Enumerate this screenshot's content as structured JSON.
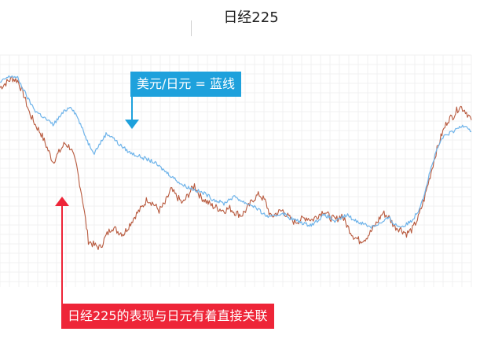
{
  "chart_data": {
    "type": "line",
    "title": "日经225",
    "xlabel": "",
    "ylabel": "",
    "grid": true,
    "series": [
      {
        "name": "日经225",
        "color": "#b85a3e",
        "values": [
          86,
          88,
          90,
          89,
          83,
          75,
          70,
          66,
          60,
          54,
          58,
          62,
          60,
          52,
          38,
          20,
          18,
          17,
          22,
          26,
          24,
          23,
          27,
          31,
          34,
          38,
          36,
          33,
          36,
          42,
          39,
          36,
          40,
          44,
          39,
          37,
          35,
          34,
          33,
          34,
          32,
          31,
          34,
          38,
          40,
          37,
          30,
          32,
          33,
          30,
          28,
          29,
          30,
          29,
          31,
          33,
          30,
          29,
          31,
          26,
          22,
          20,
          21,
          24,
          28,
          32,
          30,
          26,
          25,
          23,
          25,
          30,
          38,
          48,
          58,
          66,
          72,
          74,
          78,
          76,
          72
        ]
      },
      {
        "name": "美元/日元",
        "color": "#6fb4ea",
        "values": [
          88,
          90,
          91,
          90,
          85,
          80,
          76,
          74,
          72,
          70,
          73,
          76,
          78,
          74,
          68,
          62,
          58,
          62,
          66,
          65,
          62,
          60,
          58,
          57,
          56,
          55,
          54,
          52,
          50,
          48,
          46,
          44,
          43,
          42,
          41,
          40,
          38,
          37,
          36,
          38,
          39,
          37,
          36,
          35,
          33,
          31,
          30,
          31,
          32,
          30,
          29,
          28,
          27,
          27,
          29,
          31,
          30,
          28,
          30,
          31,
          29,
          28,
          27,
          26,
          27,
          28,
          30,
          27,
          26,
          27,
          29,
          33,
          40,
          50,
          58,
          64,
          66,
          67,
          69,
          70,
          67
        ]
      }
    ],
    "annotations": [
      {
        "text": "美元/日元 = 蓝线",
        "color": "#1ea1dc"
      },
      {
        "text": "日经225的表现与日元有着直接关联",
        "color": "#ee2538"
      }
    ]
  }
}
